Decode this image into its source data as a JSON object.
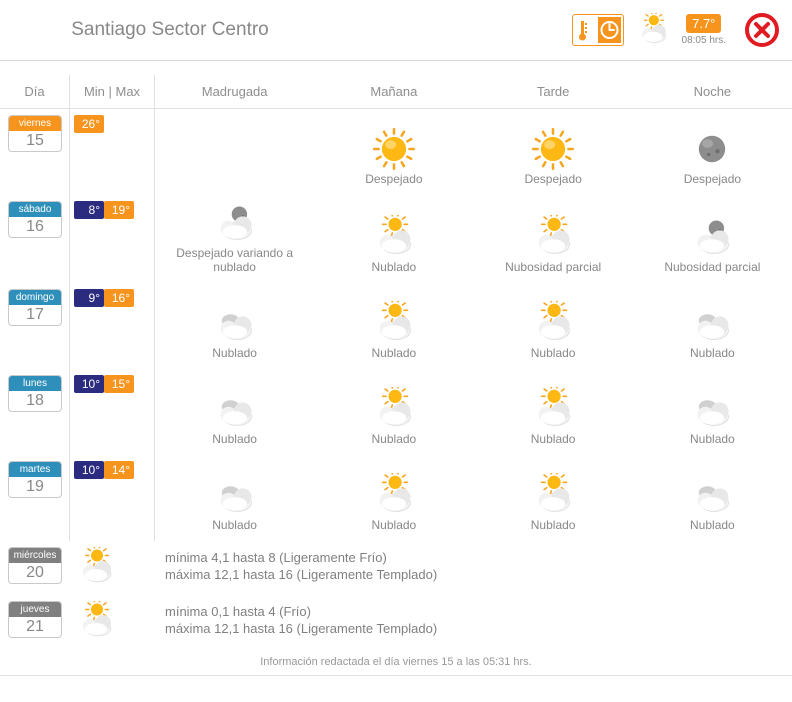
{
  "colors": {
    "orange": "#f7941d",
    "navy": "#2b2b7f",
    "blue": "#2f8fbb",
    "gray": "#808080",
    "red": "#e11b22",
    "border": "#e1e1e1"
  },
  "header": {
    "title": "Santiago Sector Centro",
    "current_temp": "7.7°",
    "current_time": "08:05 hrs."
  },
  "columns": {
    "day": "Día",
    "minmax": "Min | Max",
    "p0": "Madrugada",
    "p1": "Mañana",
    "p2": "Tarde",
    "p3": "Noche"
  },
  "icons": {
    "sun": "sun",
    "moon": "moon",
    "cloud": "cloud",
    "cloud-sun": "cloud-sun",
    "cloud-moon": "cloud-moon"
  },
  "days": [
    {
      "name": "viernes",
      "num": "15",
      "day_color": "#f7941d",
      "min": null,
      "max": "26°",
      "periods": [
        null,
        {
          "icon": "sun",
          "label": "Despejado"
        },
        {
          "icon": "sun",
          "label": "Despejado"
        },
        {
          "icon": "moon",
          "label": "Despejado"
        }
      ]
    },
    {
      "name": "sábado",
      "num": "16",
      "day_color": "#2f8fbb",
      "min": "8°",
      "max": "19°",
      "periods": [
        {
          "icon": "cloud-moon",
          "label": "Despejado variando a nublado"
        },
        {
          "icon": "cloud-sun",
          "label": "Nublado"
        },
        {
          "icon": "cloud-sun",
          "label": "Nubosidad parcial"
        },
        {
          "icon": "cloud-moon",
          "label": "Nubosidad parcial"
        }
      ]
    },
    {
      "name": "domingo",
      "num": "17",
      "day_color": "#2f8fbb",
      "min": "9°",
      "max": "16°",
      "periods": [
        {
          "icon": "cloud",
          "label": "Nublado"
        },
        {
          "icon": "cloud-sun",
          "label": "Nublado"
        },
        {
          "icon": "cloud-sun",
          "label": "Nublado"
        },
        {
          "icon": "cloud",
          "label": "Nublado"
        }
      ]
    },
    {
      "name": "lunes",
      "num": "18",
      "day_color": "#2f8fbb",
      "min": "10°",
      "max": "15°",
      "periods": [
        {
          "icon": "cloud",
          "label": "Nublado"
        },
        {
          "icon": "cloud-sun",
          "label": "Nublado"
        },
        {
          "icon": "cloud-sun",
          "label": "Nublado"
        },
        {
          "icon": "cloud",
          "label": "Nublado"
        }
      ]
    },
    {
      "name": "martes",
      "num": "19",
      "day_color": "#2f8fbb",
      "min": "10°",
      "max": "14°",
      "periods": [
        {
          "icon": "cloud",
          "label": "Nublado"
        },
        {
          "icon": "cloud-sun",
          "label": "Nublado"
        },
        {
          "icon": "cloud-sun",
          "label": "Nublado"
        },
        {
          "icon": "cloud",
          "label": "Nublado"
        }
      ]
    }
  ],
  "simple_days": [
    {
      "name": "miércoles",
      "num": "20",
      "day_color": "#808080",
      "line1": "mínima 4,1 hasta 8 (Ligeramente Frío)",
      "line2": "máxima 12,1 hasta 16 (Ligeramente Templado)"
    },
    {
      "name": "jueves",
      "num": "21",
      "day_color": "#808080",
      "line1": "mínima 0,1 hasta 4 (Frío)",
      "line2": "máxima 12,1 hasta 16 (Ligeramente Templado)"
    }
  ],
  "footer": "Información redactada el día viernes 15 a las 05:31 hrs."
}
